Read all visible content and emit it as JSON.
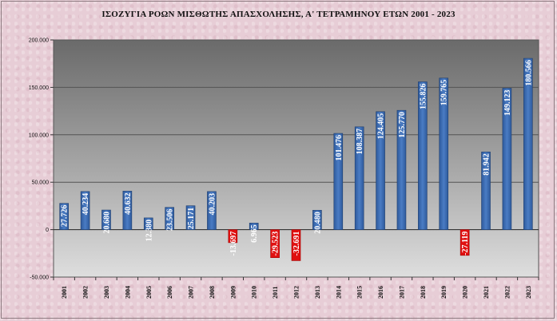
{
  "chart_data": {
    "type": "bar",
    "title": "ΙΣΟΖΥΓΙΑ ΡΟΩΝ ΜΙΣΘΩΤΗΣ ΑΠΑΣΧΟΛΗΣΗΣ, Α' ΤΕΤΡΑΜΗΝΟΥ ΕΤΩΝ  2001 - 2023",
    "xlabel": "",
    "ylabel": "",
    "ylim": [
      -50000,
      200000
    ],
    "yticks": [
      -50000,
      0,
      50000,
      100000,
      150000,
      200000
    ],
    "ytick_labels": [
      "-50.000",
      "0",
      "50.000",
      "100.000",
      "150.000",
      "200.000"
    ],
    "grid": true,
    "categories": [
      "2001",
      "2002",
      "2003",
      "2004",
      "2005",
      "2006",
      "2007",
      "2008",
      "2009",
      "2010",
      "2011",
      "2012",
      "2013",
      "2014",
      "2015",
      "2016",
      "2017",
      "2018",
      "2019",
      "2020",
      "2021",
      "2022",
      "2023"
    ],
    "values": [
      27726,
      40234,
      20680,
      40632,
      12380,
      23506,
      25171,
      40203,
      -13697,
      6965,
      -29523,
      -32691,
      20480,
      101476,
      108387,
      124405,
      125770,
      155826,
      159765,
      -27119,
      81942,
      149123,
      180566
    ],
    "labels": [
      "27.726",
      "40.234",
      "20.680",
      "40.632",
      "12.380",
      "23.506",
      "25.171",
      "40.203",
      "-13.697",
      "6.965",
      "-29.523",
      "-32.691",
      "20.480",
      "101.476",
      "108.387",
      "124.405",
      "125.770",
      "155.826",
      "159.765",
      "-27.119",
      "81.942",
      "149.123",
      "180.566"
    ],
    "colors": {
      "positive": "#3f6fb8",
      "negative": "#e01010",
      "positive_label": "#ffffff",
      "negative_label": "#ffffff"
    }
  }
}
